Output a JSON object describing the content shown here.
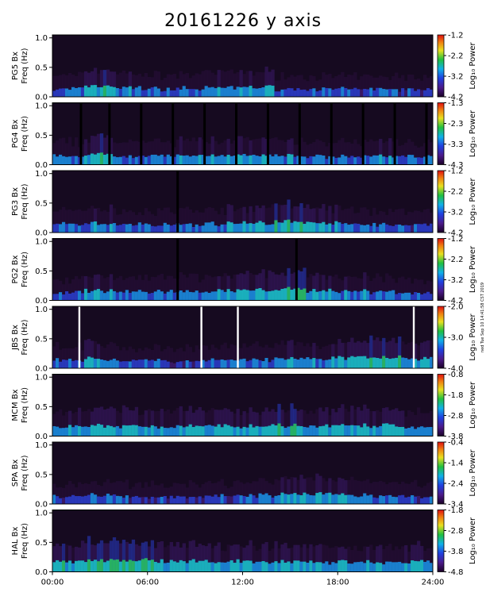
{
  "title": "20161226 y axis",
  "side_note": "ned Tue Sep 10 14:41:58 CST 2019",
  "colors": {
    "background": "#1a0f24",
    "low": "#2a1340",
    "mid": "#1aa0d8",
    "high": "#29c07a",
    "peak": "#e8e020",
    "gap": "#000000",
    "fill_gap": "#ffffff"
  },
  "chart_data": [
    {
      "type": "heatmap",
      "station": "PG5 Bx",
      "ylabel": "Freq (Hz)",
      "colorbar_label": "Log₁₀ Power",
      "colorbar_ticks": [
        "-1.2",
        "-2.2",
        "-3.2",
        "-4.2"
      ],
      "colorbar_range": [
        -4.2,
        -1.2
      ],
      "yticks": [
        "1.0",
        "0.5",
        "0.0"
      ],
      "ylim": [
        0,
        1.05
      ],
      "xlim": [
        0,
        24
      ],
      "intensity": [
        1.8,
        3.0,
        2.2,
        1.8,
        2.0,
        2.4,
        2.6,
        1.8,
        1.6,
        1.6,
        1.6,
        1.4
      ],
      "white_gaps": [],
      "black_gaps": []
    },
    {
      "type": "heatmap",
      "station": "PG4 Bx",
      "ylabel": "Freq (Hz)",
      "colorbar_label": "Log₁₀ Power",
      "colorbar_ticks": [
        "-1.3",
        "-2.3",
        "-3.3",
        "-4.3"
      ],
      "colorbar_range": [
        -4.3,
        -1.3
      ],
      "yticks": [
        "1.0",
        "0.5",
        "0.0"
      ],
      "ylim": [
        0,
        1.05
      ],
      "xlim": [
        0,
        24
      ],
      "intensity": [
        2.0,
        3.0,
        2.2,
        2.0,
        2.4,
        2.6,
        2.4,
        2.2,
        2.0,
        2.0,
        2.2,
        2.0
      ],
      "white_gaps": [],
      "black_gaps": [
        1.8,
        3.6,
        5.6,
        7.6,
        9.6,
        11.6,
        13.6,
        15.6,
        17.6,
        19.6,
        21.6,
        23.6
      ]
    },
    {
      "type": "heatmap",
      "station": "PG3 Bx",
      "ylabel": "Freq (Hz)",
      "colorbar_label": "Log₁₀ Power",
      "colorbar_ticks": [
        "-1.2",
        "-2.2",
        "-3.2",
        "-4.2"
      ],
      "colorbar_range": [
        -4.2,
        -1.2
      ],
      "yticks": [
        "1.0",
        "0.5",
        "0.0"
      ],
      "ylim": [
        0,
        1.05
      ],
      "xlim": [
        0,
        24
      ],
      "intensity": [
        1.8,
        2.4,
        2.0,
        1.8,
        2.0,
        2.2,
        2.6,
        3.2,
        2.4,
        2.0,
        1.8,
        1.6
      ],
      "white_gaps": [],
      "black_gaps": [
        7.9
      ]
    },
    {
      "type": "heatmap",
      "station": "PG2 Bx",
      "ylabel": "Freq (Hz)",
      "colorbar_label": "Log₁₀ Power",
      "colorbar_ticks": [
        "-1.2",
        "-2.2",
        "-3.2",
        "-4.2"
      ],
      "colorbar_range": [
        -4.2,
        -1.2
      ],
      "yticks": [
        "1.0",
        "0.5",
        "0.0"
      ],
      "ylim": [
        0,
        1.05
      ],
      "xlim": [
        0,
        24
      ],
      "intensity": [
        1.8,
        2.4,
        2.2,
        2.0,
        2.2,
        2.4,
        2.8,
        3.4,
        2.6,
        2.2,
        2.0,
        1.8
      ],
      "white_gaps": [],
      "black_gaps": [
        7.9,
        15.4
      ]
    },
    {
      "type": "heatmap",
      "station": "JBS Bx",
      "ylabel": "Freq (Hz)",
      "colorbar_label": "Log₁₀ Power",
      "colorbar_ticks": [
        "-2.0",
        "-3.0",
        "-4.0"
      ],
      "colorbar_range": [
        -4.0,
        -2.0
      ],
      "yticks": [
        "1.0",
        "0.5",
        "0.0"
      ],
      "ylim": [
        0,
        1.05
      ],
      "xlim": [
        0,
        24
      ],
      "intensity": [
        2.0,
        2.4,
        1.6,
        1.4,
        1.6,
        1.8,
        2.0,
        2.2,
        2.4,
        2.8,
        3.2,
        2.6
      ],
      "white_gaps": [
        1.7,
        9.4,
        11.7,
        22.8
      ],
      "black_gaps": []
    },
    {
      "type": "heatmap",
      "station": "MCM Bx",
      "ylabel": "Freq (Hz)",
      "colorbar_label": "Log₁₀ Power",
      "colorbar_ticks": [
        "-0.8",
        "-1.8",
        "-2.8",
        "-3.8"
      ],
      "colorbar_range": [
        -3.8,
        -0.8
      ],
      "yticks": [
        "1.0",
        "0.5",
        "0.0"
      ],
      "ylim": [
        0,
        1.05
      ],
      "xlim": [
        0,
        24
      ],
      "intensity": [
        2.6,
        2.8,
        2.6,
        2.6,
        2.8,
        2.6,
        2.8,
        3.0,
        2.8,
        3.0,
        2.8,
        2.4
      ],
      "white_gaps": [],
      "black_gaps": []
    },
    {
      "type": "heatmap",
      "station": "SPA Bx",
      "ylabel": "Freq (Hz)",
      "colorbar_label": "Log₁₀ Power",
      "colorbar_ticks": [
        "-0.4",
        "-1.4",
        "-2.4",
        "-3.4"
      ],
      "colorbar_range": [
        -3.4,
        -0.4
      ],
      "yticks": [
        "1.0",
        "0.5",
        "0.0"
      ],
      "ylim": [
        0,
        1.05
      ],
      "xlim": [
        0,
        24
      ],
      "intensity": [
        1.6,
        2.2,
        1.6,
        1.4,
        1.4,
        1.6,
        2.0,
        2.4,
        2.6,
        2.4,
        2.0,
        1.6
      ],
      "white_gaps": [],
      "black_gaps": []
    },
    {
      "type": "heatmap",
      "station": "HAL Bx",
      "ylabel": "Freq (Hz)",
      "colorbar_label": "Log₁₀ Power",
      "colorbar_ticks": [
        "-1.8",
        "-2.8",
        "-3.8",
        "-4.8"
      ],
      "colorbar_range": [
        -4.8,
        -1.8
      ],
      "yticks": [
        "1.0",
        "0.5",
        "0.0"
      ],
      "ylim": [
        0,
        1.05
      ],
      "xlim": [
        0,
        24
      ],
      "intensity": [
        3.2,
        3.6,
        3.4,
        3.0,
        2.8,
        2.8,
        2.8,
        2.8,
        2.6,
        2.6,
        2.6,
        2.6
      ],
      "white_gaps": [],
      "black_gaps": []
    }
  ],
  "xaxis": {
    "ticks": [
      "00:00",
      "06:00",
      "12:00",
      "18:00",
      "24:00"
    ],
    "xlim": [
      0,
      24
    ]
  }
}
